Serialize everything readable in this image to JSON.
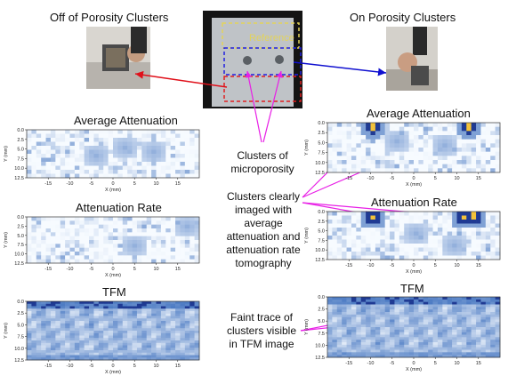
{
  "header": {
    "left_title": "Off of Porosity Clusters",
    "right_title": "On Porosity Clusters",
    "reference_label": "Reference"
  },
  "panels": {
    "left": {
      "avg_title": "Average Attenuation",
      "rate_title": "Attenuation Rate",
      "tfm_title": "TFM"
    },
    "right": {
      "avg_title": "Average Attenuation",
      "rate_title": "Attenuation Rate",
      "tfm_title": "TFM"
    }
  },
  "axes": {
    "xlabel": "X (mm)",
    "ylabel": "Y (mm)",
    "x_ticks": [
      "-15",
      "-10",
      "-5",
      "0",
      "5",
      "10",
      "15"
    ],
    "y_ticks_atten": [
      "0.0",
      "2.5",
      "5.0",
      "7.5",
      "10.0",
      "12.5"
    ],
    "y_ticks_tfm": [
      "0.0",
      "2.5",
      "5.0",
      "7.5",
      "10.0",
      "12.5"
    ]
  },
  "annotations": {
    "clusters_label": "Clusters of microporosity",
    "clearly_imaged": "Clusters clearly imaged with average attenuation and attenuation rate tomography",
    "faint_trace": "Faint trace of clusters visible in TFM image"
  },
  "colors": {
    "red_arrow": "#e0101a",
    "blue_arrow": "#1010d0",
    "magenta_arrow": "#e81fe6",
    "heat_low": "#f7fbff",
    "heat_mid": "#6baed6",
    "heat_high": "#08306b"
  }
}
